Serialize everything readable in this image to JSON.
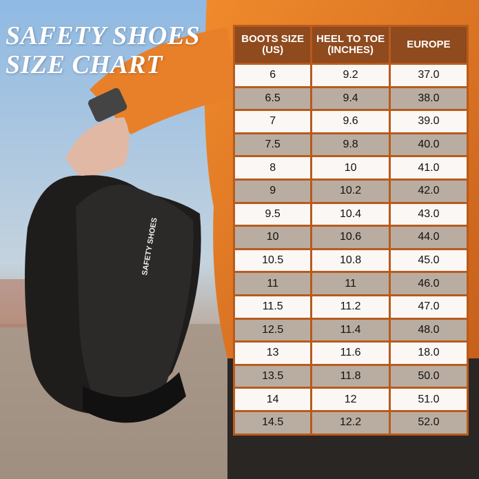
{
  "title": {
    "line1": "SAFETY SHOES",
    "line2": "SIZE CHART"
  },
  "table": {
    "headers": [
      "BOOTS SIZE (US)",
      "HEEL TO TOE (INCHES)",
      "EUROPE"
    ],
    "rows": [
      [
        "6",
        "9.2",
        "37.0"
      ],
      [
        "6.5",
        "9.4",
        "38.0"
      ],
      [
        "7",
        "9.6",
        "39.0"
      ],
      [
        "7.5",
        "9.8",
        "40.0"
      ],
      [
        "8",
        "10",
        "41.0"
      ],
      [
        "9",
        "10.2",
        "42.0"
      ],
      [
        "9.5",
        "10.4",
        "43.0"
      ],
      [
        "10",
        "10.6",
        "44.0"
      ],
      [
        "10.5",
        "10.8",
        "45.0"
      ],
      [
        "11",
        "11",
        "46.0"
      ],
      [
        "11.5",
        "11.2",
        "47.0"
      ],
      [
        "12.5",
        "11.4",
        "48.0"
      ],
      [
        "13",
        "11.6",
        "18.0"
      ],
      [
        "13.5",
        "11.8",
        "50.0"
      ],
      [
        "14",
        "12",
        "51.0"
      ],
      [
        "14.5",
        "12.2",
        "52.0"
      ]
    ]
  },
  "product": {
    "print": "SAFETY SHOES"
  }
}
